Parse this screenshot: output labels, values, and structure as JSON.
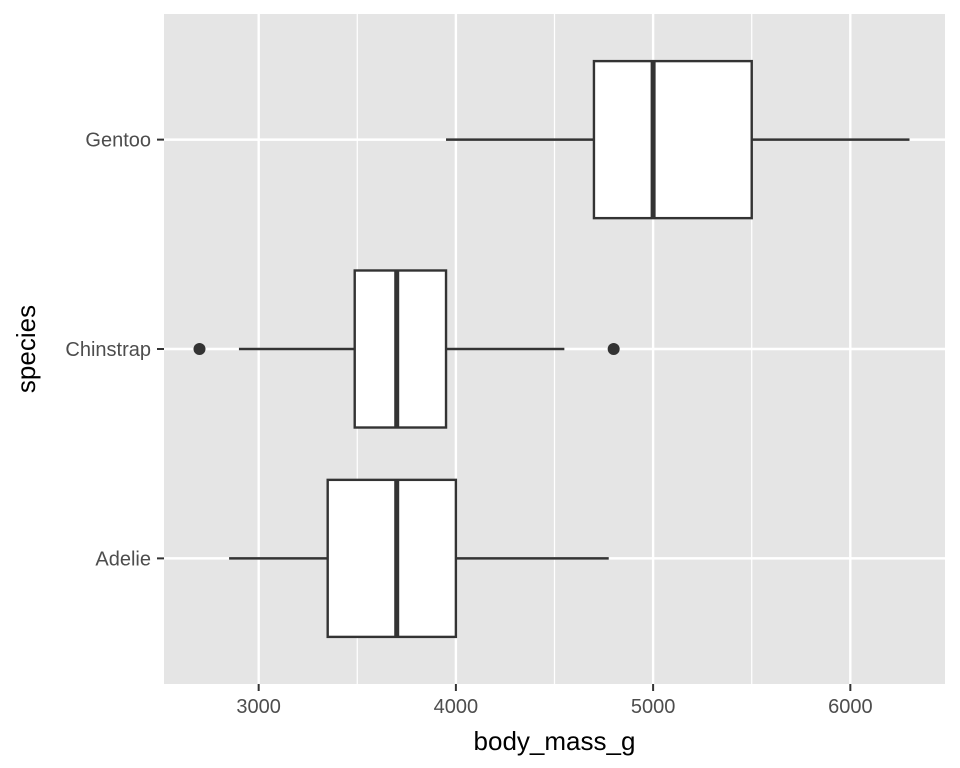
{
  "chart_data": {
    "type": "boxplot",
    "orientation": "horizontal",
    "xlabel": "body_mass_g",
    "ylabel": "species",
    "xlim": [
      2520,
      6480
    ],
    "x_ticks": [
      3000,
      4000,
      5000,
      6000
    ],
    "x_tick_labels": [
      "3000",
      "4000",
      "5000",
      "6000"
    ],
    "categories": [
      "Adelie",
      "Chinstrap",
      "Gentoo"
    ],
    "boxes": [
      {
        "category": "Adelie",
        "whisker_low": 2850,
        "q1": 3350,
        "median": 3700,
        "q3": 4000,
        "whisker_high": 4775,
        "outliers": []
      },
      {
        "category": "Chinstrap",
        "whisker_low": 2900,
        "q1": 3487,
        "median": 3700,
        "q3": 3950,
        "whisker_high": 4550,
        "outliers": [
          2700,
          4800
        ]
      },
      {
        "category": "Gentoo",
        "whisker_low": 3950,
        "q1": 4700,
        "median": 5000,
        "q3": 5500,
        "whisker_high": 6300,
        "outliers": []
      }
    ],
    "grid": true,
    "legend": "none",
    "colors": {
      "panel": "#e5e5e5",
      "grid": "#ffffff",
      "box_fill": "#ffffff",
      "stroke": "#333333",
      "tick": "#333333"
    }
  }
}
